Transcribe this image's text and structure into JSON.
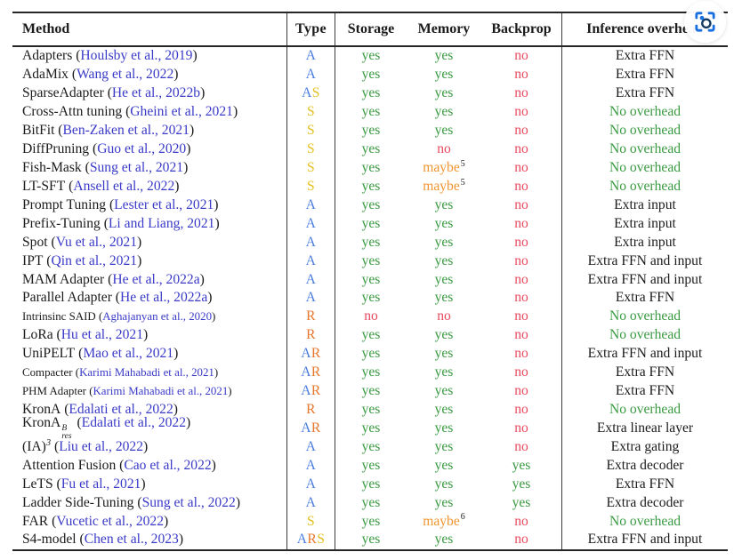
{
  "colors": {
    "type": {
      "A": "#4a7ce0",
      "S": "#e4c122",
      "R": "#e8772e"
    },
    "value": {
      "yes": "#3a9a42",
      "no": "#e8495f",
      "maybe": "#f0952f"
    },
    "overhead": {
      "green": "#3a9a42",
      "black": "#1b1b1b"
    },
    "citation": "#3a3ac8",
    "icon_blue": "#1a6fe0",
    "icon_navy": "#123a63"
  },
  "icons": {
    "capture": "screenshot-capture-icon"
  },
  "table": {
    "columns": [
      "Method",
      "Type",
      "Storage",
      "Memory",
      "Backprop",
      "Inference overhead"
    ],
    "rows": [
      {
        "method": "Adapters",
        "cite": "Houlsby et al., 2019",
        "type": "A",
        "storage": "yes",
        "memory": "yes",
        "backprop": "no",
        "overhead": "Extra FFN",
        "overhead_color": "black"
      },
      {
        "method": "AdaMix",
        "cite": "Wang et al., 2022",
        "type": "A",
        "storage": "yes",
        "memory": "yes",
        "backprop": "no",
        "overhead": "Extra FFN",
        "overhead_color": "black"
      },
      {
        "method": "SparseAdapter",
        "cite": "He et al., 2022b",
        "type": "AS",
        "storage": "yes",
        "memory": "yes",
        "backprop": "no",
        "overhead": "Extra FFN",
        "overhead_color": "black"
      },
      {
        "method": "Cross-Attn tuning",
        "cite": "Gheini et al., 2021",
        "type": "S",
        "storage": "yes",
        "memory": "yes",
        "backprop": "no",
        "overhead": "No overhead",
        "overhead_color": "green"
      },
      {
        "method": "BitFit",
        "cite": "Ben-Zaken et al., 2021",
        "type": "S",
        "storage": "yes",
        "memory": "yes",
        "backprop": "no",
        "overhead": "No overhead",
        "overhead_color": "green"
      },
      {
        "method": "DiffPruning",
        "cite": "Guo et al., 2020",
        "type": "S",
        "storage": "yes",
        "memory": "no",
        "backprop": "no",
        "overhead": "No overhead",
        "overhead_color": "green"
      },
      {
        "method": "Fish-Mask",
        "cite": "Sung et al., 2021",
        "type": "S",
        "storage": "yes",
        "memory": "maybe",
        "memory_sup": "5",
        "backprop": "no",
        "overhead": "No overhead",
        "overhead_color": "green"
      },
      {
        "method": "LT-SFT",
        "cite": "Ansell et al., 2022",
        "type": "S",
        "storage": "yes",
        "memory": "maybe",
        "memory_sup": "5",
        "backprop": "no",
        "overhead": "No overhead",
        "overhead_color": "green"
      },
      {
        "method": "Prompt Tuning",
        "cite": "Lester et al., 2021",
        "type": "A",
        "storage": "yes",
        "memory": "yes",
        "backprop": "no",
        "overhead": "Extra input",
        "overhead_color": "black"
      },
      {
        "method": "Prefix-Tuning",
        "cite": "Li and Liang, 2021",
        "type": "A",
        "storage": "yes",
        "memory": "yes",
        "backprop": "no",
        "overhead": "Extra input",
        "overhead_color": "black"
      },
      {
        "method": "Spot",
        "cite": "Vu et al., 2021",
        "type": "A",
        "storage": "yes",
        "memory": "yes",
        "backprop": "no",
        "overhead": "Extra input",
        "overhead_color": "black"
      },
      {
        "method": "IPT",
        "cite": "Qin et al., 2021",
        "type": "A",
        "storage": "yes",
        "memory": "yes",
        "backprop": "no",
        "overhead": "Extra FFN and input",
        "overhead_color": "black"
      },
      {
        "method": "MAM Adapter",
        "cite": "He et al., 2022a",
        "type": "A",
        "storage": "yes",
        "memory": "yes",
        "backprop": "no",
        "overhead": "Extra FFN and input",
        "overhead_color": "black"
      },
      {
        "method": "Parallel Adapter",
        "cite": "He et al., 2022a",
        "type": "A",
        "storage": "yes",
        "memory": "yes",
        "backprop": "no",
        "overhead": "Extra FFN",
        "overhead_color": "black"
      },
      {
        "method": "Intrinsinc SAID",
        "cite": "Aghajanyan et al., 2020",
        "type": "R",
        "storage": "no",
        "memory": "no",
        "backprop": "no",
        "overhead": "No overhead",
        "overhead_color": "green",
        "small": true
      },
      {
        "method": "LoRa",
        "cite": "Hu et al., 2021",
        "type": "R",
        "storage": "yes",
        "memory": "yes",
        "backprop": "no",
        "overhead": "No overhead",
        "overhead_color": "green"
      },
      {
        "method": "UniPELT",
        "cite": "Mao et al., 2021",
        "type": "AR",
        "storage": "yes",
        "memory": "yes",
        "backprop": "no",
        "overhead": "Extra FFN and input",
        "overhead_color": "black"
      },
      {
        "method": "Compacter",
        "cite": "Karimi Mahabadi et al., 2021",
        "type": "AR",
        "storage": "yes",
        "memory": "yes",
        "backprop": "no",
        "overhead": "Extra FFN",
        "overhead_color": "black",
        "small": true
      },
      {
        "method": "PHM Adapter",
        "cite": "Karimi Mahabadi et al., 2021",
        "type": "AR",
        "storage": "yes",
        "memory": "yes",
        "backprop": "no",
        "overhead": "Extra FFN",
        "overhead_color": "black",
        "small": true
      },
      {
        "method": "KronA",
        "cite": "Edalati et al., 2022",
        "type": "R",
        "storage": "yes",
        "memory": "yes",
        "backprop": "no",
        "overhead": "No overhead",
        "overhead_color": "green"
      },
      {
        "method": "KronA",
        "method_sup": "B",
        "method_sub": "res",
        "cite": "Edalati et al., 2022",
        "type": "AR",
        "storage": "yes",
        "memory": "yes",
        "backprop": "no",
        "overhead": "Extra linear layer",
        "overhead_color": "black"
      },
      {
        "method": "(IA)",
        "method_sup": "3",
        "cite": "Liu et al., 2022",
        "type": "A",
        "storage": "yes",
        "memory": "yes",
        "backprop": "no",
        "overhead": "Extra gating",
        "overhead_color": "black"
      },
      {
        "method": "Attention Fusion",
        "cite": "Cao et al., 2022",
        "type": "A",
        "storage": "yes",
        "memory": "yes",
        "backprop": "yes",
        "overhead": "Extra decoder",
        "overhead_color": "black"
      },
      {
        "method": "LeTS",
        "cite": "Fu et al., 2021",
        "type": "A",
        "storage": "yes",
        "memory": "yes",
        "backprop": "yes",
        "overhead": "Extra FFN",
        "overhead_color": "black"
      },
      {
        "method": "Ladder Side-Tuning",
        "cite": "Sung et al., 2022",
        "type": "A",
        "storage": "yes",
        "memory": "yes",
        "backprop": "yes",
        "overhead": "Extra decoder",
        "overhead_color": "black"
      },
      {
        "method": "FAR",
        "cite": "Vucetic et al., 2022",
        "type": "S",
        "storage": "yes",
        "memory": "maybe",
        "memory_sup": "6",
        "backprop": "no",
        "overhead": "No overhead",
        "overhead_color": "green"
      },
      {
        "method": "S4-model",
        "cite": "Chen et al., 2023",
        "type": "ARS",
        "storage": "yes",
        "memory": "yes",
        "backprop": "no",
        "overhead": "Extra FFN and input",
        "overhead_color": "black"
      }
    ]
  }
}
